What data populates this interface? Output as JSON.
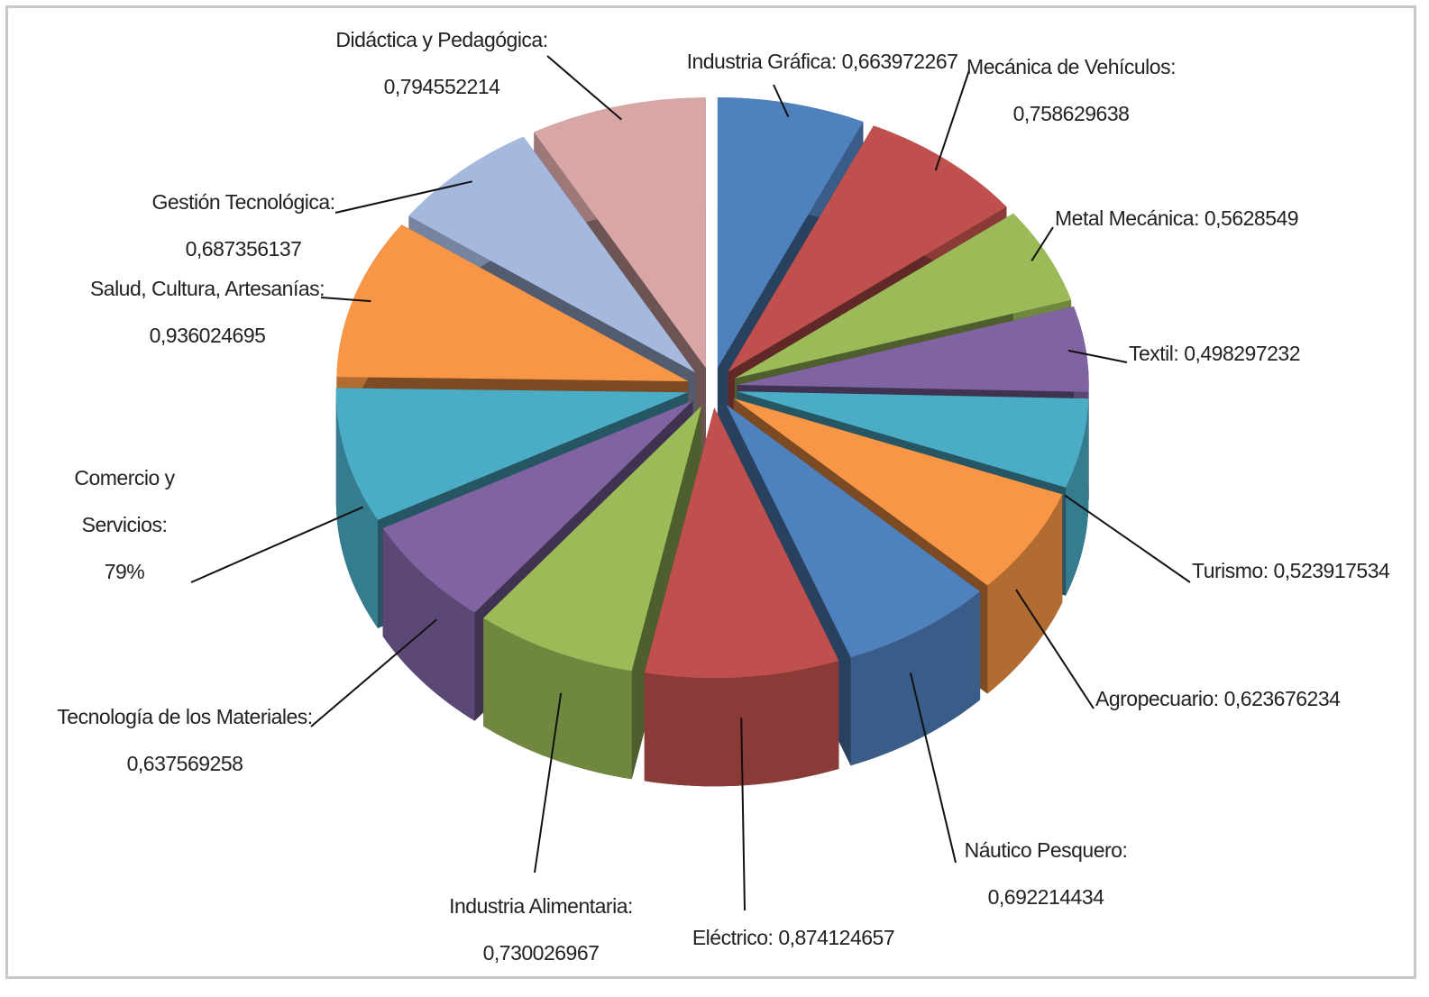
{
  "chart_data": {
    "type": "pie3d",
    "categories": [
      "Industria Gráfica:",
      "Mecánica de Vehículos:",
      "Metal Mecánica:",
      "Textil:",
      "Turismo:",
      "Agropecuario:",
      "Náutico Pesquero:",
      "Eléctrico:",
      "Industria Alimentaria:",
      "Tecnología de los Materiales:",
      "Comercio y Servicios:",
      "Salud, Cultura, Artesanías:",
      "Gestión Tecnológica:",
      "Didáctica y Pedagógica:"
    ],
    "values": [
      0.663972267,
      0.758629638,
      0.5628549,
      0.498297232,
      0.523917534,
      0.623676234,
      0.692214434,
      0.874124657,
      0.730026967,
      0.637569258,
      0.79,
      0.936024695,
      0.687356137,
      0.794552214
    ],
    "value_labels": [
      "0,663972267",
      "0,758629638",
      "0,5628549",
      "0,498297232",
      "0,523917534",
      "0,623676234",
      "0,692214434",
      "0,874124657",
      "0,730026967",
      "0,637569258",
      "79%",
      "0,936024695",
      "0,687356137",
      "0,794552214"
    ],
    "colors": [
      "#4f81bd",
      "#c0504d",
      "#9bbb59",
      "#8064a2",
      "#4bacc6",
      "#f79646",
      "#4f81bd",
      "#c0504d",
      "#9bbb59",
      "#8064a2",
      "#4bacc6",
      "#f79646",
      "#a5b8dd",
      "#d9a6a6"
    ]
  }
}
